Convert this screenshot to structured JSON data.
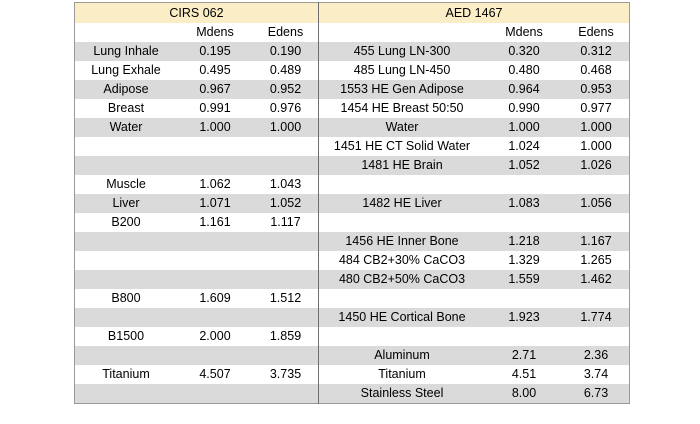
{
  "left_group": "CIRS 062",
  "right_group": "AED 1467",
  "columns": {
    "left": [
      "",
      "Mdens",
      "Edens"
    ],
    "right": [
      "",
      "Mdens",
      "Edens"
    ]
  },
  "rows": [
    {
      "left": [
        "Lung Inhale",
        "0.195",
        "0.190"
      ],
      "right": [
        "455 Lung LN-300",
        "0.320",
        "0.312"
      ]
    },
    {
      "left": [
        "Lung Exhale",
        "0.495",
        "0.489"
      ],
      "right": [
        "485 Lung LN-450",
        "0.480",
        "0.468"
      ]
    },
    {
      "left": [
        "Adipose",
        "0.967",
        "0.952"
      ],
      "right": [
        "1553 HE Gen Adipose",
        "0.964",
        "0.953"
      ]
    },
    {
      "left": [
        "Breast",
        "0.991",
        "0.976"
      ],
      "right": [
        "1454 HE Breast 50:50",
        "0.990",
        "0.977"
      ]
    },
    {
      "left": [
        "Water",
        "1.000",
        "1.000"
      ],
      "right": [
        "Water",
        "1.000",
        "1.000"
      ]
    },
    {
      "left": [
        "",
        "",
        ""
      ],
      "right": [
        "1451 HE CT Solid Water",
        "1.024",
        "1.000"
      ]
    },
    {
      "left": [
        "",
        "",
        ""
      ],
      "right": [
        "1481 HE Brain",
        "1.052",
        "1.026"
      ]
    },
    {
      "left": [
        "Muscle",
        "1.062",
        "1.043"
      ],
      "right": [
        "",
        "",
        ""
      ]
    },
    {
      "left": [
        "Liver",
        "1.071",
        "1.052"
      ],
      "right": [
        "1482 HE Liver",
        "1.083",
        "1.056"
      ]
    },
    {
      "left": [
        "B200",
        "1.161",
        "1.117"
      ],
      "right": [
        "",
        "",
        ""
      ]
    },
    {
      "left": [
        "",
        "",
        ""
      ],
      "right": [
        "1456 HE Inner Bone",
        "1.218",
        "1.167"
      ]
    },
    {
      "left": [
        "",
        "",
        ""
      ],
      "right": [
        "484 CB2+30% CaCO3",
        "1.329",
        "1.265"
      ]
    },
    {
      "left": [
        "",
        "",
        ""
      ],
      "right": [
        "480 CB2+50% CaCO3",
        "1.559",
        "1.462"
      ]
    },
    {
      "left": [
        "B800",
        "1.609",
        "1.512"
      ],
      "right": [
        "",
        "",
        ""
      ]
    },
    {
      "left": [
        "",
        "",
        ""
      ],
      "right": [
        "1450 HE Cortical Bone",
        "1.923",
        "1.774"
      ]
    },
    {
      "left": [
        "B1500",
        "2.000",
        "1.859"
      ],
      "right": [
        "",
        "",
        ""
      ]
    },
    {
      "left": [
        "",
        "",
        ""
      ],
      "right": [
        "Aluminum",
        "2.71",
        "2.36"
      ]
    },
    {
      "left": [
        "Titanium",
        "4.507",
        "3.735"
      ],
      "right": [
        "Titanium",
        "4.51",
        "3.74"
      ]
    },
    {
      "left": [
        "",
        "",
        ""
      ],
      "right": [
        "Stainless Steel",
        "8.00",
        "6.73"
      ]
    }
  ]
}
